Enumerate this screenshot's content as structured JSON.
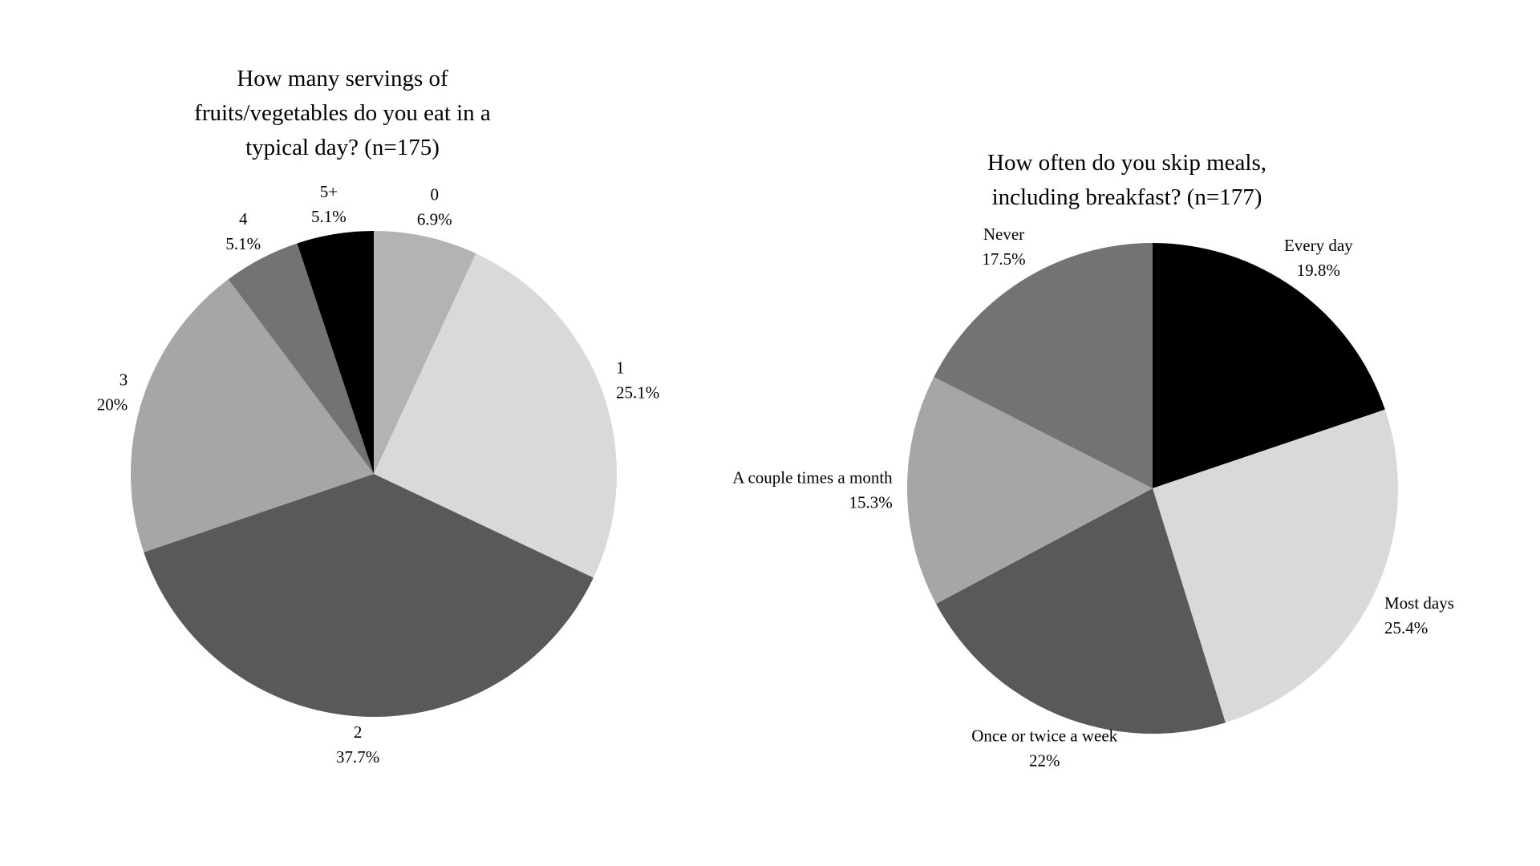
{
  "page": {
    "background_color": "#ffffff",
    "text_color": "#000000"
  },
  "chart_data": [
    {
      "type": "pie",
      "title": "How many servings of fruits/vegetables do you eat in a typical day? (n=175)",
      "title_lines": [
        "How many servings of",
        "fruits/vegetables do you eat in a",
        "typical day? (n=175)"
      ],
      "sample_size_label": "n=175",
      "categories": [
        "0",
        "1",
        "2",
        "3",
        "4",
        "5+"
      ],
      "values": [
        6.9,
        25.1,
        37.7,
        20,
        5.1,
        5.1
      ],
      "value_labels": [
        "6.9%",
        "25.1%",
        "37.7%",
        "20%",
        "5.1%",
        "5.1%"
      ],
      "colors": [
        "#b3b3b3",
        "#d9d9d9",
        "#595959",
        "#a6a6a6",
        "#737373",
        "#000000"
      ],
      "start_angle_deg": 0,
      "direction": "clockwise",
      "legend": "none",
      "label_position": "outside"
    },
    {
      "type": "pie",
      "title": "How often do you skip meals, including breakfast? (n=177)",
      "title_lines": [
        "How often do you skip meals,",
        "including breakfast? (n=177)"
      ],
      "sample_size_label": "n=177",
      "categories": [
        "Every day",
        "Most days",
        "Once or twice a week",
        "A couple times a month",
        "Never"
      ],
      "values": [
        19.8,
        25.4,
        22,
        15.3,
        17.5
      ],
      "value_labels": [
        "19.8%",
        "25.4%",
        "22%",
        "15.3%",
        "17.5%"
      ],
      "colors": [
        "#000000",
        "#d9d9d9",
        "#595959",
        "#a6a6a6",
        "#737373"
      ],
      "start_angle_deg": 0,
      "direction": "clockwise",
      "legend": "none",
      "label_position": "outside"
    }
  ]
}
